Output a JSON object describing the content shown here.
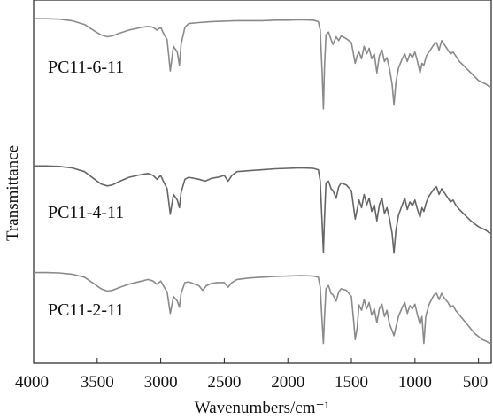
{
  "chart_data": {
    "type": "line",
    "xlabel": "Wavenumbers/cm⁻¹",
    "ylabel": "Transmittance",
    "xlim": [
      4000,
      400
    ],
    "x_reversed": true,
    "x_ticks": [
      4000,
      3500,
      3000,
      2500,
      2000,
      1500,
      1000,
      500
    ],
    "y_ticks_shown": false,
    "grid": false,
    "legend": "none",
    "label_placement": "left, beside each spectrum",
    "series": [
      {
        "name": "PC11-6-11",
        "color": "#8a8a8a",
        "offset_rank": 1,
        "points": [
          [
            4000,
            0.97
          ],
          [
            3900,
            0.97
          ],
          [
            3800,
            0.965
          ],
          [
            3700,
            0.95
          ],
          [
            3600,
            0.91
          ],
          [
            3520,
            0.84
          ],
          [
            3470,
            0.8
          ],
          [
            3420,
            0.78
          ],
          [
            3380,
            0.79
          ],
          [
            3320,
            0.82
          ],
          [
            3250,
            0.85
          ],
          [
            3150,
            0.88
          ],
          [
            3100,
            0.89
          ],
          [
            3060,
            0.88
          ],
          [
            3030,
            0.85
          ],
          [
            3000,
            0.88
          ],
          [
            2980,
            0.82
          ],
          [
            2950,
            0.75
          ],
          [
            2925,
            0.42
          ],
          [
            2900,
            0.68
          ],
          [
            2870,
            0.62
          ],
          [
            2853,
            0.48
          ],
          [
            2840,
            0.7
          ],
          [
            2810,
            0.88
          ],
          [
            2780,
            0.92
          ],
          [
            2700,
            0.93
          ],
          [
            2600,
            0.94
          ],
          [
            2500,
            0.945
          ],
          [
            2400,
            0.95
          ],
          [
            2300,
            0.95
          ],
          [
            2200,
            0.95
          ],
          [
            2100,
            0.955
          ],
          [
            2000,
            0.955
          ],
          [
            1900,
            0.96
          ],
          [
            1800,
            0.955
          ],
          [
            1760,
            0.94
          ],
          [
            1745,
            0.85
          ],
          [
            1730,
            0.4
          ],
          [
            1720,
            0.02
          ],
          [
            1712,
            0.45
          ],
          [
            1700,
            0.8
          ],
          [
            1680,
            0.83
          ],
          [
            1660,
            0.75
          ],
          [
            1645,
            0.7
          ],
          [
            1620,
            0.78
          ],
          [
            1600,
            0.74
          ],
          [
            1580,
            0.79
          ],
          [
            1540,
            0.76
          ],
          [
            1500,
            0.72
          ],
          [
            1470,
            0.5
          ],
          [
            1455,
            0.58
          ],
          [
            1440,
            0.62
          ],
          [
            1420,
            0.55
          ],
          [
            1400,
            0.68
          ],
          [
            1380,
            0.6
          ],
          [
            1360,
            0.66
          ],
          [
            1340,
            0.55
          ],
          [
            1320,
            0.6
          ],
          [
            1300,
            0.4
          ],
          [
            1280,
            0.58
          ],
          [
            1260,
            0.64
          ],
          [
            1240,
            0.52
          ],
          [
            1220,
            0.56
          ],
          [
            1200,
            0.44
          ],
          [
            1180,
            0.28
          ],
          [
            1165,
            0.06
          ],
          [
            1150,
            0.3
          ],
          [
            1130,
            0.45
          ],
          [
            1100,
            0.55
          ],
          [
            1080,
            0.6
          ],
          [
            1060,
            0.52
          ],
          [
            1040,
            0.6
          ],
          [
            1020,
            0.56
          ],
          [
            1000,
            0.62
          ],
          [
            980,
            0.52
          ],
          [
            960,
            0.4
          ],
          [
            945,
            0.5
          ],
          [
            930,
            0.48
          ],
          [
            910,
            0.58
          ],
          [
            890,
            0.62
          ],
          [
            870,
            0.66
          ],
          [
            850,
            0.7
          ],
          [
            830,
            0.72
          ],
          [
            810,
            0.64
          ],
          [
            790,
            0.74
          ],
          [
            770,
            0.7
          ],
          [
            740,
            0.64
          ],
          [
            720,
            0.6
          ],
          [
            700,
            0.62
          ],
          [
            680,
            0.58
          ],
          [
            650,
            0.52
          ],
          [
            620,
            0.48
          ],
          [
            590,
            0.44
          ],
          [
            560,
            0.4
          ],
          [
            530,
            0.36
          ],
          [
            500,
            0.32
          ],
          [
            470,
            0.3
          ],
          [
            440,
            0.28
          ],
          [
            420,
            0.26
          ],
          [
            400,
            0.25
          ]
        ]
      },
      {
        "name": "PC11-4-11",
        "color": "#666666",
        "offset_rank": 2,
        "points": [
          [
            4000,
            0.96
          ],
          [
            3900,
            0.96
          ],
          [
            3800,
            0.955
          ],
          [
            3700,
            0.94
          ],
          [
            3600,
            0.9
          ],
          [
            3520,
            0.82
          ],
          [
            3470,
            0.77
          ],
          [
            3420,
            0.75
          ],
          [
            3380,
            0.76
          ],
          [
            3320,
            0.8
          ],
          [
            3250,
            0.84
          ],
          [
            3150,
            0.87
          ],
          [
            3100,
            0.88
          ],
          [
            3060,
            0.86
          ],
          [
            3030,
            0.82
          ],
          [
            3000,
            0.86
          ],
          [
            2980,
            0.8
          ],
          [
            2950,
            0.72
          ],
          [
            2925,
            0.45
          ],
          [
            2900,
            0.66
          ],
          [
            2870,
            0.6
          ],
          [
            2853,
            0.52
          ],
          [
            2840,
            0.68
          ],
          [
            2810,
            0.82
          ],
          [
            2780,
            0.84
          ],
          [
            2700,
            0.82
          ],
          [
            2650,
            0.8
          ],
          [
            2600,
            0.83
          ],
          [
            2550,
            0.84
          ],
          [
            2500,
            0.86
          ],
          [
            2470,
            0.8
          ],
          [
            2440,
            0.86
          ],
          [
            2400,
            0.9
          ],
          [
            2300,
            0.91
          ],
          [
            2200,
            0.92
          ],
          [
            2100,
            0.93
          ],
          [
            2000,
            0.935
          ],
          [
            1900,
            0.94
          ],
          [
            1800,
            0.935
          ],
          [
            1760,
            0.92
          ],
          [
            1745,
            0.8
          ],
          [
            1730,
            0.35
          ],
          [
            1720,
            0.05
          ],
          [
            1712,
            0.4
          ],
          [
            1700,
            0.78
          ],
          [
            1680,
            0.8
          ],
          [
            1660,
            0.72
          ],
          [
            1645,
            0.7
          ],
          [
            1620,
            0.62
          ],
          [
            1600,
            0.74
          ],
          [
            1580,
            0.78
          ],
          [
            1540,
            0.76
          ],
          [
            1500,
            0.7
          ],
          [
            1470,
            0.4
          ],
          [
            1455,
            0.5
          ],
          [
            1440,
            0.6
          ],
          [
            1420,
            0.52
          ],
          [
            1400,
            0.66
          ],
          [
            1380,
            0.55
          ],
          [
            1360,
            0.62
          ],
          [
            1340,
            0.48
          ],
          [
            1320,
            0.55
          ],
          [
            1300,
            0.38
          ],
          [
            1280,
            0.55
          ],
          [
            1260,
            0.62
          ],
          [
            1240,
            0.46
          ],
          [
            1220,
            0.52
          ],
          [
            1200,
            0.4
          ],
          [
            1180,
            0.25
          ],
          [
            1165,
            0.04
          ],
          [
            1150,
            0.28
          ],
          [
            1130,
            0.44
          ],
          [
            1100,
            0.55
          ],
          [
            1080,
            0.62
          ],
          [
            1060,
            0.5
          ],
          [
            1040,
            0.58
          ],
          [
            1020,
            0.54
          ],
          [
            1000,
            0.6
          ],
          [
            980,
            0.5
          ],
          [
            960,
            0.42
          ],
          [
            945,
            0.52
          ],
          [
            930,
            0.48
          ],
          [
            910,
            0.58
          ],
          [
            890,
            0.64
          ],
          [
            870,
            0.68
          ],
          [
            850,
            0.72
          ],
          [
            830,
            0.74
          ],
          [
            810,
            0.66
          ],
          [
            790,
            0.72
          ],
          [
            770,
            0.68
          ],
          [
            740,
            0.62
          ],
          [
            720,
            0.58
          ],
          [
            700,
            0.6
          ],
          [
            680,
            0.55
          ],
          [
            650,
            0.5
          ],
          [
            620,
            0.46
          ],
          [
            590,
            0.42
          ],
          [
            560,
            0.38
          ],
          [
            530,
            0.35
          ],
          [
            500,
            0.32
          ],
          [
            470,
            0.3
          ],
          [
            440,
            0.28
          ],
          [
            420,
            0.26
          ],
          [
            400,
            0.25
          ]
        ]
      },
      {
        "name": "PC11-2-11",
        "color": "#8a8a8a",
        "offset_rank": 3,
        "points": [
          [
            4000,
            0.97
          ],
          [
            3900,
            0.97
          ],
          [
            3800,
            0.965
          ],
          [
            3700,
            0.95
          ],
          [
            3600,
            0.91
          ],
          [
            3520,
            0.82
          ],
          [
            3470,
            0.76
          ],
          [
            3420,
            0.73
          ],
          [
            3380,
            0.74
          ],
          [
            3320,
            0.78
          ],
          [
            3250,
            0.82
          ],
          [
            3150,
            0.86
          ],
          [
            3100,
            0.88
          ],
          [
            3060,
            0.86
          ],
          [
            3030,
            0.82
          ],
          [
            3000,
            0.86
          ],
          [
            2980,
            0.8
          ],
          [
            2950,
            0.72
          ],
          [
            2925,
            0.44
          ],
          [
            2900,
            0.66
          ],
          [
            2870,
            0.6
          ],
          [
            2853,
            0.52
          ],
          [
            2840,
            0.7
          ],
          [
            2810,
            0.84
          ],
          [
            2780,
            0.85
          ],
          [
            2700,
            0.8
          ],
          [
            2670,
            0.74
          ],
          [
            2640,
            0.8
          ],
          [
            2600,
            0.83
          ],
          [
            2550,
            0.84
          ],
          [
            2500,
            0.84
          ],
          [
            2470,
            0.78
          ],
          [
            2440,
            0.84
          ],
          [
            2400,
            0.88
          ],
          [
            2300,
            0.9
          ],
          [
            2200,
            0.91
          ],
          [
            2100,
            0.92
          ],
          [
            2000,
            0.925
          ],
          [
            1900,
            0.93
          ],
          [
            1800,
            0.925
          ],
          [
            1760,
            0.91
          ],
          [
            1745,
            0.78
          ],
          [
            1730,
            0.32
          ],
          [
            1720,
            0.05
          ],
          [
            1712,
            0.38
          ],
          [
            1700,
            0.76
          ],
          [
            1680,
            0.8
          ],
          [
            1660,
            0.7
          ],
          [
            1645,
            0.68
          ],
          [
            1620,
            0.6
          ],
          [
            1600,
            0.72
          ],
          [
            1580,
            0.76
          ],
          [
            1540,
            0.74
          ],
          [
            1500,
            0.66
          ],
          [
            1480,
            0.3
          ],
          [
            1470,
            0.1
          ],
          [
            1455,
            0.25
          ],
          [
            1440,
            0.55
          ],
          [
            1420,
            0.48
          ],
          [
            1400,
            0.62
          ],
          [
            1380,
            0.5
          ],
          [
            1360,
            0.58
          ],
          [
            1340,
            0.42
          ],
          [
            1320,
            0.5
          ],
          [
            1300,
            0.32
          ],
          [
            1280,
            0.5
          ],
          [
            1260,
            0.56
          ],
          [
            1240,
            0.4
          ],
          [
            1220,
            0.48
          ],
          [
            1200,
            0.3
          ],
          [
            1180,
            0.22
          ],
          [
            1165,
            0.15
          ],
          [
            1150,
            0.26
          ],
          [
            1130,
            0.4
          ],
          [
            1100,
            0.52
          ],
          [
            1080,
            0.58
          ],
          [
            1060,
            0.44
          ],
          [
            1040,
            0.54
          ],
          [
            1020,
            0.5
          ],
          [
            1000,
            0.56
          ],
          [
            980,
            0.42
          ],
          [
            960,
            0.3
          ],
          [
            945,
            0.4
          ],
          [
            930,
            0.05
          ],
          [
            915,
            0.4
          ],
          [
            890,
            0.55
          ],
          [
            870,
            0.62
          ],
          [
            850,
            0.68
          ],
          [
            830,
            0.7
          ],
          [
            810,
            0.62
          ],
          [
            790,
            0.7
          ],
          [
            770,
            0.64
          ],
          [
            740,
            0.58
          ],
          [
            720,
            0.52
          ],
          [
            700,
            0.54
          ],
          [
            680,
            0.48
          ],
          [
            650,
            0.42
          ],
          [
            620,
            0.36
          ],
          [
            590,
            0.3
          ],
          [
            560,
            0.24
          ],
          [
            530,
            0.18
          ],
          [
            500,
            0.14
          ],
          [
            470,
            0.1
          ],
          [
            440,
            0.08
          ],
          [
            420,
            0.06
          ],
          [
            400,
            0.05
          ]
        ]
      }
    ]
  }
}
